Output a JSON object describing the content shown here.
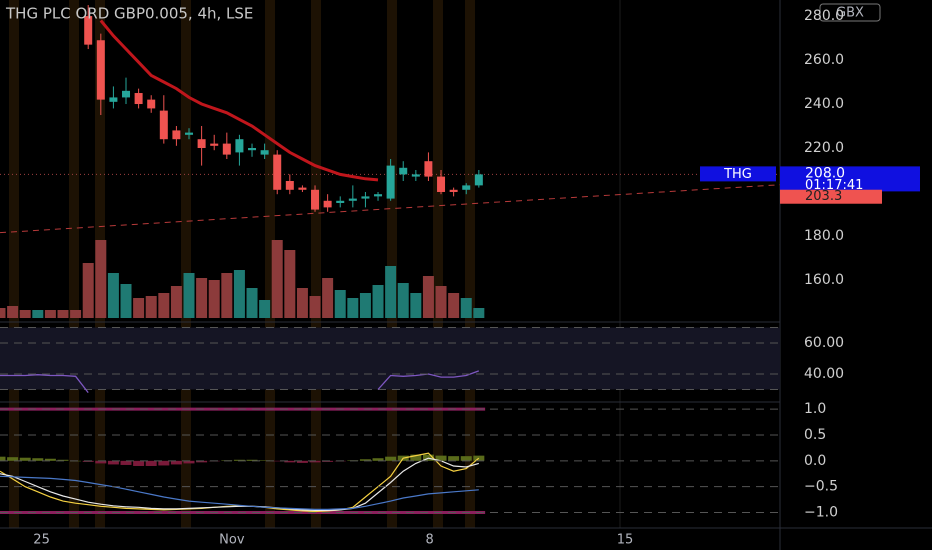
{
  "chart_data": [
    {
      "type": "candlestick",
      "title": "THG PLC ORD GBP0.005, 4h, LSE",
      "currency": "GBX",
      "symbol_label": "THG",
      "countdown": "01:17:41",
      "last_price": {
        "value": 208,
        "label": "208.0"
      },
      "trendline": {
        "x": [
          0,
          61.9
        ],
        "values": [
          181.5,
          203.3
        ],
        "label": "203.3",
        "color": "#b83a3a"
      },
      "up_color": "#26a69a",
      "down_color": "#ef5350",
      "open": [
        null,
        null,
        null,
        null,
        null,
        null,
        null,
        280,
        269,
        241,
        243,
        245,
        242,
        237,
        228,
        226,
        224,
        222,
        222,
        218,
        219,
        217,
        217,
        205,
        202,
        201,
        196,
        195,
        196,
        197,
        198,
        197,
        208,
        207,
        214,
        207,
        201,
        201,
        203
      ],
      "high": [
        null,
        null,
        null,
        null,
        null,
        null,
        null,
        285,
        272,
        248,
        252,
        247,
        244,
        244,
        230,
        229,
        230,
        226,
        227,
        226,
        222,
        222,
        219,
        208,
        203,
        203,
        199,
        198,
        203,
        200,
        200,
        215,
        214,
        210,
        218,
        210,
        202,
        204,
        210
      ],
      "low": [
        null,
        null,
        null,
        null,
        null,
        null,
        null,
        265,
        235,
        238,
        240,
        238,
        236,
        222,
        221,
        224,
        212,
        219,
        215,
        212,
        216,
        215,
        199,
        199,
        200,
        191,
        191,
        193,
        193,
        193,
        196,
        196,
        205,
        205,
        205,
        199,
        198,
        199,
        202
      ],
      "close": [
        null,
        null,
        null,
        null,
        null,
        null,
        null,
        267,
        242,
        243,
        246,
        240,
        238,
        224,
        224,
        227,
        220,
        221,
        217,
        224,
        220,
        219,
        201,
        201,
        201,
        192,
        193,
        196,
        197,
        198,
        199,
        212,
        211,
        208,
        207,
        200,
        200,
        203,
        208
      ],
      "moving_average": {
        "color": "#c0161c",
        "values": [
          null,
          null,
          null,
          null,
          null,
          null,
          null,
          null,
          278,
          271,
          265,
          259,
          253,
          250,
          247,
          243,
          240,
          238,
          236,
          233,
          230,
          226,
          222,
          218,
          215,
          212,
          210,
          208,
          207,
          206,
          205.5,
          null,
          null,
          null,
          null,
          null,
          null,
          null,
          null
        ]
      },
      "volume": {
        "values": [
          10,
          12,
          8,
          8,
          8,
          8,
          8,
          55,
          78,
          45,
          34,
          20,
          22,
          25,
          32,
          45,
          40,
          38,
          45,
          48,
          30,
          18,
          78,
          68,
          30,
          22,
          40,
          28,
          20,
          25,
          33,
          52,
          35,
          25,
          42,
          32,
          25,
          20,
          10
        ],
        "colors": [
          "#8c3b3b",
          "#8c3b3b",
          "#8c3b3b",
          "#1f7a73",
          "#8c3b3b",
          "#8c3b3b",
          "#8c3b3b",
          "#8c3b3b",
          "#8c3b3b",
          "#1f7a73",
          "#1f7a73",
          "#8c3b3b",
          "#8c3b3b",
          "#8c3b3b",
          "#8c3b3b",
          "#1f7a73",
          "#8c3b3b",
          "#8c3b3b",
          "#8c3b3b",
          "#1f7a73",
          "#1f7a73",
          "#1f7a73",
          "#8c3b3b",
          "#8c3b3b",
          "#8c3b3b",
          "#8c3b3b",
          "#8c3b3b",
          "#1f7a73",
          "#1f7a73",
          "#1f7a73",
          "#1f7a73",
          "#1f7a73",
          "#1f7a73",
          "#1f7a73",
          "#8c3b3b",
          "#8c3b3b",
          "#8c3b3b",
          "#1f7a73",
          "#1f7a73"
        ]
      },
      "xlim": [
        0,
        61.9
      ],
      "xticks": [
        {
          "value": 3.3,
          "label": "25"
        },
        {
          "value": 18.4,
          "label": "Nov"
        },
        {
          "value": 34.1,
          "label": "8"
        },
        {
          "value": 49.6,
          "label": "15"
        }
      ],
      "ylim": [
        142.7,
        287.3
      ],
      "yticks": [
        {
          "value": 280,
          "label": "280.0"
        },
        {
          "value": 260,
          "label": "260.0"
        },
        {
          "value": 240,
          "label": "240.0"
        },
        {
          "value": 220,
          "label": "220.0"
        },
        {
          "value": 180,
          "label": "180.0"
        },
        {
          "value": 160,
          "label": "160.0"
        }
      ]
    },
    {
      "type": "line",
      "ylim": [
        23.2,
        71.6
      ],
      "yticks": [
        {
          "value": 60,
          "label": "60.00"
        },
        {
          "value": 40,
          "label": "40.00"
        }
      ],
      "band": [
        30,
        70
      ],
      "series": [
        {
          "color": "#7e57c2",
          "values": [
            39,
            39,
            39,
            39.5,
            39,
            39,
            38.5,
            28,
            null,
            null,
            null,
            null,
            null,
            null,
            null,
            null,
            null,
            null,
            null,
            null,
            null,
            null,
            null,
            null,
            null,
            null,
            null,
            null,
            null,
            null,
            30,
            39,
            38.5,
            39,
            40,
            38,
            38,
            39,
            42
          ]
        }
      ]
    },
    {
      "type": "oscillator",
      "ylim": [
        -1.3,
        1.08
      ],
      "yticks": [
        {
          "value": 1,
          "label": "1.0"
        },
        {
          "value": 0.5,
          "label": "0.5"
        },
        {
          "value": 0,
          "label": "0.0"
        },
        {
          "value": -0.5,
          "label": "−0.5"
        },
        {
          "value": -1,
          "label": "−1.0"
        }
      ],
      "levels": [
        1,
        -1
      ],
      "level_color": "#8a1f5c",
      "histogram": {
        "up_color": "#5a6b1a",
        "down_color": "#7a1a3a",
        "values": [
          0.08,
          0.07,
          0.06,
          0.05,
          0.04,
          0.02,
          0.0,
          -0.02,
          -0.05,
          -0.07,
          -0.08,
          -0.1,
          -0.1,
          -0.09,
          -0.07,
          -0.05,
          -0.03,
          -0.01,
          0.01,
          0.02,
          0.02,
          0.01,
          -0.01,
          -0.03,
          -0.04,
          -0.03,
          -0.02,
          -0.01,
          0.01,
          0.03,
          0.05,
          0.08,
          0.1,
          0.12,
          0.12,
          0.1,
          0.09,
          0.09,
          0.1
        ]
      },
      "series": [
        {
          "color": "#f5d142",
          "values": [
            -0.2,
            -0.35,
            -0.5,
            -0.6,
            -0.7,
            -0.78,
            -0.82,
            -0.85,
            -0.88,
            -0.9,
            -0.92,
            -0.93,
            -0.94,
            -0.95,
            -0.94,
            -0.93,
            -0.92,
            -0.9,
            -0.88,
            -0.87,
            -0.88,
            -0.9,
            -0.93,
            -0.95,
            -0.97,
            -0.98,
            -0.97,
            -0.95,
            -0.9,
            -0.7,
            -0.5,
            -0.3,
            0.05,
            0.1,
            0.15,
            -0.1,
            -0.2,
            -0.15,
            0.05
          ]
        },
        {
          "color": "#e8e8e8",
          "values": [
            -0.25,
            -0.3,
            -0.4,
            -0.5,
            -0.6,
            -0.68,
            -0.74,
            -0.8,
            -0.84,
            -0.87,
            -0.89,
            -0.9,
            -0.92,
            -0.93,
            -0.93,
            -0.92,
            -0.91,
            -0.9,
            -0.89,
            -0.88,
            -0.88,
            -0.89,
            -0.91,
            -0.93,
            -0.95,
            -0.96,
            -0.96,
            -0.95,
            -0.92,
            -0.82,
            -0.62,
            -0.42,
            -0.2,
            -0.05,
            0.05,
            0.0,
            -0.1,
            -0.12,
            -0.05
          ]
        },
        {
          "color": "#4a78c8",
          "values": [
            -0.3,
            -0.31,
            -0.32,
            -0.33,
            -0.34,
            -0.36,
            -0.38,
            -0.42,
            -0.46,
            -0.5,
            -0.55,
            -0.6,
            -0.65,
            -0.7,
            -0.74,
            -0.78,
            -0.8,
            -0.82,
            -0.84,
            -0.86,
            -0.88,
            -0.9,
            -0.91,
            -0.92,
            -0.93,
            -0.94,
            -0.94,
            -0.93,
            -0.92,
            -0.88,
            -0.83,
            -0.78,
            -0.72,
            -0.68,
            -0.64,
            -0.62,
            -0.6,
            -0.58,
            -0.56
          ]
        }
      ]
    }
  ]
}
